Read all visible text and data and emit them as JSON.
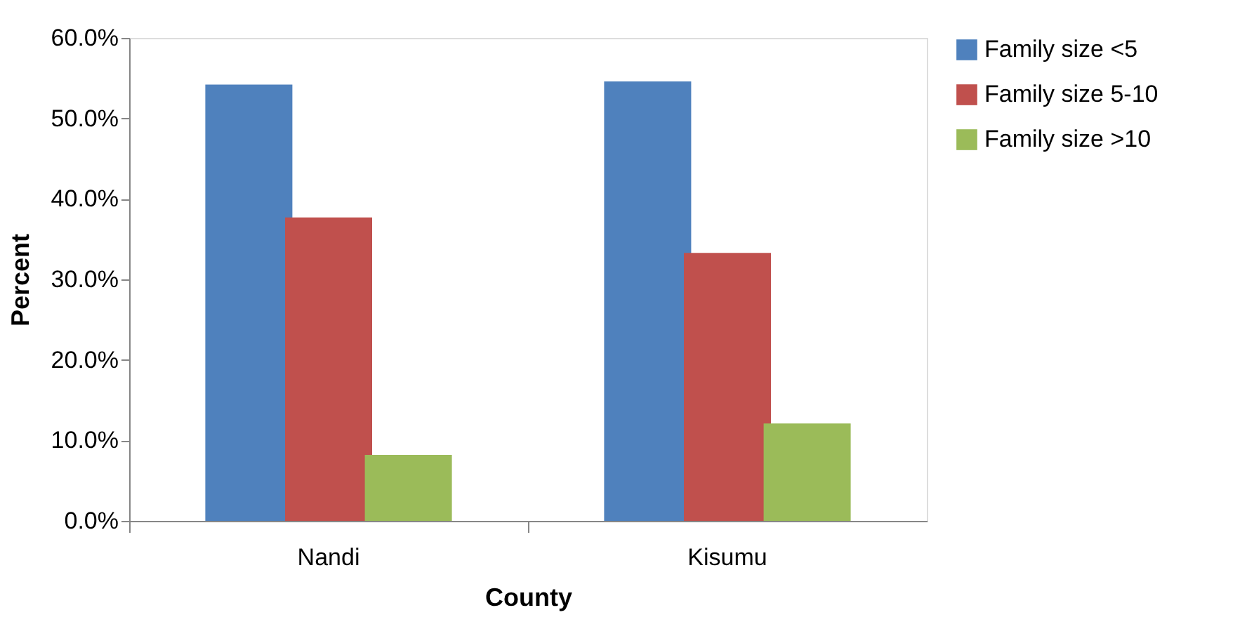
{
  "chart_data": {
    "type": "bar",
    "xlabel": "County",
    "ylabel": "Percent",
    "categories": [
      "Nandi",
      "Kisumu"
    ],
    "series": [
      {
        "name": "Family size <5",
        "color": "#4f81bd",
        "values": [
          54.2,
          54.6
        ]
      },
      {
        "name": "Family size 5-10",
        "color": "#c0504d",
        "values": [
          37.7,
          33.3
        ]
      },
      {
        "name": "Family  size >10",
        "color": "#9bbb59",
        "values": [
          8.2,
          12.1
        ]
      }
    ],
    "ylim": [
      0,
      60
    ],
    "yticks": [
      {
        "value": 0,
        "label": "0.0%"
      },
      {
        "value": 10,
        "label": "10.0%"
      },
      {
        "value": 20,
        "label": "20.0%"
      },
      {
        "value": 30,
        "label": "30.0%"
      },
      {
        "value": 40,
        "label": "40.0%"
      },
      {
        "value": 50,
        "label": "50.0%"
      },
      {
        "value": 60,
        "label": "60.0%"
      }
    ],
    "grid": false,
    "legend": "right"
  }
}
